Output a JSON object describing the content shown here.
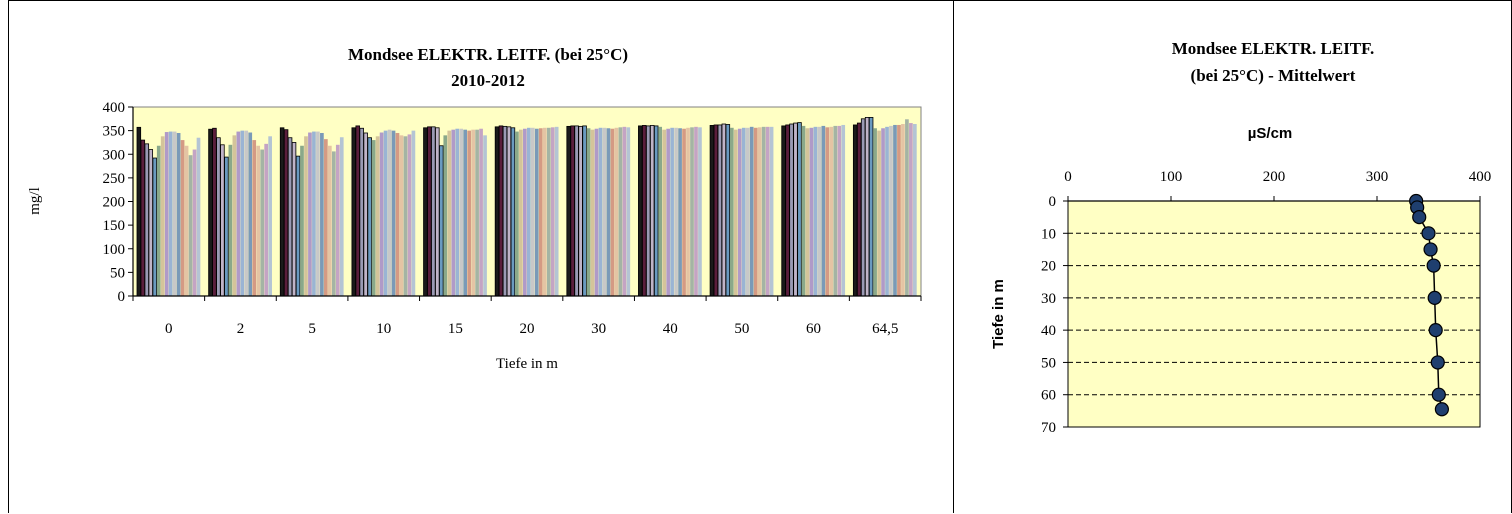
{
  "chart_data": [
    {
      "type": "bar",
      "title": "Mondsee ELEKTR.  LEITF.  (bei 25°C)",
      "subtitle": "2010-2012",
      "xlabel": "Tiefe in m",
      "ylabel": "mg/l",
      "ylim": [
        0,
        400
      ],
      "yticks": [
        0,
        50,
        100,
        150,
        200,
        250,
        300,
        350,
        400
      ],
      "categories": [
        "0",
        "2",
        "5",
        "10",
        "15",
        "20",
        "30",
        "40",
        "50",
        "60",
        "64,5"
      ],
      "group_values": [
        [
          357,
          330,
          322,
          310,
          292,
          318,
          338,
          347,
          348,
          348,
          345,
          330,
          318,
          298,
          310,
          335
        ],
        [
          353,
          355,
          335,
          320,
          294,
          320,
          340,
          348,
          350,
          350,
          346,
          330,
          318,
          310,
          322,
          338
        ],
        [
          356,
          352,
          335,
          325,
          296,
          318,
          338,
          346,
          348,
          348,
          345,
          332,
          318,
          306,
          320,
          336
        ],
        [
          356,
          360,
          355,
          345,
          335,
          330,
          338,
          346,
          350,
          352,
          350,
          345,
          340,
          338,
          342,
          350
        ],
        [
          356,
          358,
          358,
          356,
          318,
          340,
          350,
          352,
          354,
          354,
          352,
          350,
          352,
          352,
          354,
          340
        ],
        [
          358,
          360,
          359,
          358,
          356,
          348,
          352,
          354,
          356,
          356,
          354,
          355,
          356,
          356,
          357,
          358
        ],
        [
          359,
          360,
          360,
          359,
          360,
          355,
          352,
          354,
          356,
          356,
          355,
          354,
          356,
          357,
          358,
          357
        ],
        [
          360,
          361,
          360,
          361,
          360,
          358,
          352,
          354,
          356,
          356,
          355,
          354,
          356,
          357,
          358,
          357
        ],
        [
          361,
          362,
          362,
          364,
          363,
          356,
          352,
          354,
          356,
          356,
          358,
          356,
          357,
          358,
          358,
          358
        ],
        [
          360,
          362,
          364,
          366,
          367,
          360,
          355,
          356,
          358,
          358,
          360,
          357,
          358,
          360,
          360,
          362
        ],
        [
          362,
          366,
          375,
          378,
          378,
          355,
          350,
          355,
          358,
          360,
          362,
          362,
          364,
          374,
          366,
          364
        ]
      ],
      "palette": [
        "#1a1a1a",
        "#5a1e3c",
        "#9a9ab4",
        "#c0b4c8",
        "#6a9ac0",
        "#8aa88a",
        "#d4c49a",
        "#b09ac8",
        "#9ab4d4",
        "#c8c8c8",
        "#7a9ab8",
        "#d49a84",
        "#e4c4a4",
        "#a4b4a4",
        "#c4a4c4",
        "#b4c4d4"
      ],
      "plot_bg": "#ffffc4",
      "grid": false,
      "legend": "none"
    },
    {
      "type": "line",
      "title": "Mondsee ELEKTR.  LEITF.",
      "subtitle": "(bei 25°C) - Mittelwert",
      "xlabel": "µS/cm",
      "ylabel": "Tiefe in m",
      "xlim": [
        0,
        400
      ],
      "ylim": [
        0,
        70
      ],
      "xticks": [
        0,
        100,
        200,
        300,
        400
      ],
      "yticks": [
        0,
        10,
        20,
        30,
        40,
        50,
        60,
        70
      ],
      "x_axis_position": "top",
      "y_inverted": true,
      "series": [
        {
          "points": [
            {
              "x": 338,
              "y": 0
            },
            {
              "x": 339,
              "y": 2
            },
            {
              "x": 341,
              "y": 5
            },
            {
              "x": 350,
              "y": 10
            },
            {
              "x": 352,
              "y": 15
            },
            {
              "x": 355,
              "y": 20
            },
            {
              "x": 356,
              "y": 30
            },
            {
              "x": 357,
              "y": 40
            },
            {
              "x": 359,
              "y": 50
            },
            {
              "x": 360,
              "y": 60
            },
            {
              "x": 363,
              "y": 64.5
            }
          ]
        }
      ],
      "marker_color": "#1f3f6f",
      "plot_bg": "#ffffc4",
      "grid": true,
      "legend": "none"
    }
  ]
}
